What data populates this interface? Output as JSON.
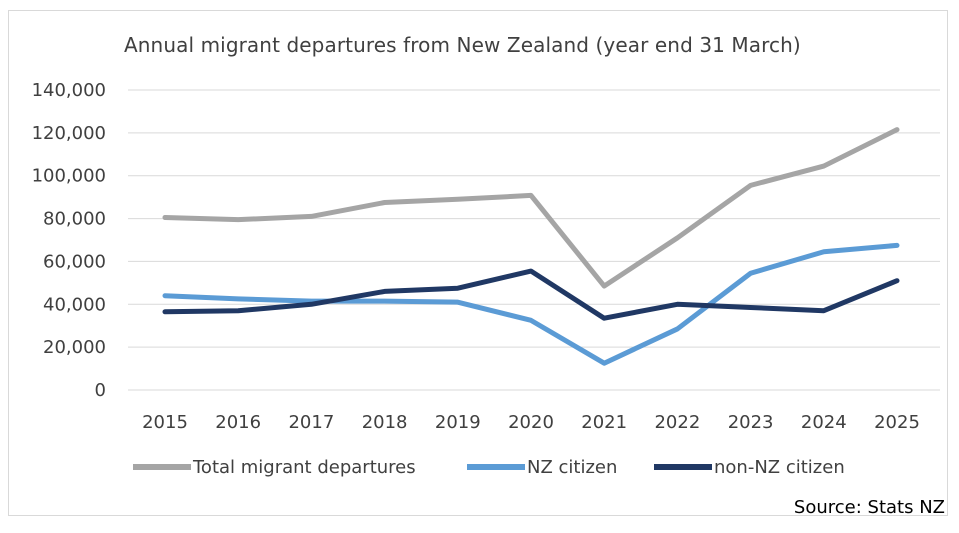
{
  "chart_data": {
    "type": "line",
    "title": "Annual migrant departures from New Zealand (year end 31 March)",
    "categories": [
      "2015",
      "2016",
      "2017",
      "2018",
      "2019",
      "2020",
      "2021",
      "2022",
      "2023",
      "2024",
      "2025"
    ],
    "ylim": [
      0,
      140000
    ],
    "yticks": [
      {
        "value": 0,
        "label": "0"
      },
      {
        "value": 20000,
        "label": "20,000"
      },
      {
        "value": 40000,
        "label": "40,000"
      },
      {
        "value": 60000,
        "label": "60,000"
      },
      {
        "value": 80000,
        "label": "80,000"
      },
      {
        "value": 100000,
        "label": "100,000"
      },
      {
        "value": 120000,
        "label": "120,000"
      },
      {
        "value": 140000,
        "label": "140,000"
      }
    ],
    "grid": true,
    "legend_position": "bottom",
    "series": [
      {
        "name": "Total migrant departures",
        "color": "#a5a5a5",
        "values": [
          80500,
          79500,
          81000,
          87500,
          89000,
          90800,
          48500,
          71000,
          95500,
          104500,
          121500
        ]
      },
      {
        "name": "NZ citizen",
        "color": "#5b9bd5",
        "values": [
          44000,
          42500,
          41500,
          41500,
          41000,
          32500,
          12500,
          28500,
          54500,
          64500,
          67500
        ]
      },
      {
        "name": "non-NZ citizen",
        "color": "#203864",
        "values": [
          36500,
          37000,
          40000,
          46000,
          47500,
          55500,
          33500,
          40000,
          38500,
          37000,
          51000
        ]
      }
    ]
  },
  "source": "Source: Stats NZ"
}
